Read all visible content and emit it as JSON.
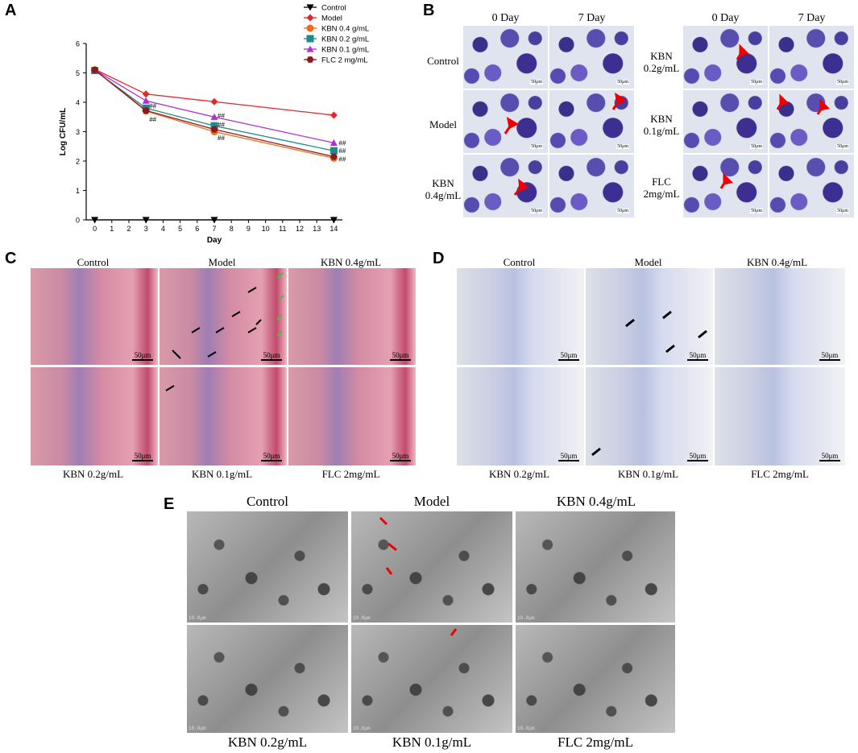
{
  "panels": {
    "a": "A",
    "b": "B",
    "c": "C",
    "d": "D",
    "e": "E"
  },
  "chart_data": {
    "type": "line",
    "xlabel": "Day",
    "ylabel": "Log CFU/mL",
    "x": [
      0,
      3,
      7,
      14
    ],
    "xticks": [
      "0",
      "1",
      "2",
      "3",
      "4",
      "5",
      "6",
      "7",
      "8",
      "9",
      "10",
      "11",
      "12",
      "13",
      "14"
    ],
    "yticks": [
      "0",
      "1",
      "2",
      "3",
      "4",
      "5",
      "6"
    ],
    "ylim": [
      0,
      6
    ],
    "xlim": [
      -0.5,
      14.5
    ],
    "legend_position": "top-right",
    "series": [
      {
        "name": "Control",
        "values": [
          0,
          0,
          0,
          0
        ],
        "color": "#000000",
        "marker": "triangle-down"
      },
      {
        "name": "Model",
        "values": [
          5.12,
          4.28,
          4.02,
          3.56
        ],
        "color": "#e8262a",
        "marker": "diamond"
      },
      {
        "name": "KBN 0.4 g/mL",
        "values": [
          5.1,
          3.7,
          3.0,
          2.1
        ],
        "color": "#f26b1d",
        "marker": "circle"
      },
      {
        "name": "KBN 0.2 g/mL",
        "values": [
          5.08,
          3.8,
          3.2,
          2.35
        ],
        "color": "#1f8a8a",
        "marker": "square"
      },
      {
        "name": "KBN 0.1 g/mL",
        "values": [
          5.1,
          4.05,
          3.5,
          2.62
        ],
        "color": "#b030d0",
        "marker": "triangle-up"
      },
      {
        "name": "FLC 2 mg/mL",
        "values": [
          5.1,
          3.72,
          3.08,
          2.15
        ],
        "color": "#8b1a1a",
        "marker": "hexagon"
      }
    ],
    "annotations": [
      {
        "x": 3,
        "y": 3.88,
        "text": "##"
      },
      {
        "x": 3,
        "y": 3.42,
        "text": "##"
      },
      {
        "x": 7,
        "y": 3.55,
        "text": "##"
      },
      {
        "x": 7,
        "y": 3.24,
        "text": "##"
      },
      {
        "x": 7,
        "y": 2.79,
        "text": "##"
      },
      {
        "x": 14,
        "y": 2.62,
        "text": "##"
      },
      {
        "x": 14,
        "y": 2.35,
        "text": "##"
      },
      {
        "x": 14,
        "y": 2.07,
        "text": "##"
      }
    ]
  },
  "panel_b": {
    "left_cols": [
      "0 Day",
      "7 Day"
    ],
    "right_cols": [
      "0 Day",
      "7 Day"
    ],
    "left_rows": [
      [
        "Control"
      ],
      [
        "Model"
      ],
      [
        "KBN",
        "0.4g/mL"
      ]
    ],
    "right_rows": [
      [
        "KBN",
        "0.2g/mL"
      ],
      [
        "KBN",
        "0.1g/mL"
      ],
      [
        "FLC",
        "2mg/mL"
      ]
    ],
    "scale": "50μm"
  },
  "panel_c": {
    "top": [
      "Control",
      "Model",
      "KBN 0.4g/mL"
    ],
    "bottom": [
      "KBN 0.2g/mL",
      "KBN 0.1g/mL",
      "FLC 2mg/mL"
    ],
    "scale": "50μm"
  },
  "panel_d": {
    "top": [
      "Control",
      "Model",
      "KBN 0.4g/mL"
    ],
    "bottom": [
      "KBN 0.2g/mL",
      "KBN 0.1g/mL",
      "FLC 2mg/mL"
    ],
    "scale": "50μm"
  },
  "panel_e": {
    "top": [
      "Control",
      "Model",
      "KBN 0.4g/mL"
    ],
    "bottom": [
      "KBN 0.2g/mL",
      "KBN 0.1g/mL",
      "FLC 2mg/mL"
    ],
    "scale": "10.0μm"
  }
}
